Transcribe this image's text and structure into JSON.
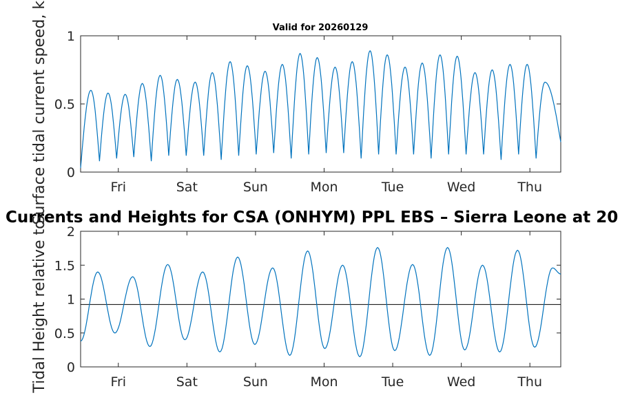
{
  "chart_data": [
    {
      "type": "line",
      "title": "Valid for 20260129",
      "ylabel": "Surface tidal current speed, knots",
      "ylim": [
        0,
        1
      ],
      "yticks": [
        0,
        0.5,
        1
      ],
      "ytick_labels": [
        "0",
        "0.5",
        "1"
      ],
      "xlabel": "",
      "x_tick_labels": [
        "Fri",
        "Sat",
        "Sun",
        "Mon",
        "Tue",
        "Wed",
        "Thu"
      ],
      "x_tick_days": [
        0.55,
        1.55,
        2.55,
        3.55,
        4.55,
        5.55,
        6.55
      ],
      "x_range_days": [
        0,
        7
      ],
      "series": [
        {
          "name": "current speed",
          "color": "#0072BD",
          "peak_days": [
            0.15,
            0.4,
            0.65,
            0.9,
            1.16,
            1.41,
            1.67,
            1.92,
            2.18,
            2.43,
            2.69,
            2.94,
            3.2,
            3.45,
            3.71,
            3.96,
            4.22,
            4.47,
            4.73,
            4.98,
            5.24,
            5.49,
            5.75,
            6.0,
            6.26,
            6.51,
            6.77
          ],
          "peak_values": [
            0.6,
            0.58,
            0.57,
            0.65,
            0.71,
            0.68,
            0.66,
            0.73,
            0.81,
            0.78,
            0.74,
            0.79,
            0.87,
            0.84,
            0.77,
            0.81,
            0.89,
            0.86,
            0.77,
            0.8,
            0.86,
            0.85,
            0.73,
            0.75,
            0.79,
            0.79,
            0.66
          ],
          "trough_values": [
            0.03,
            0.08,
            0.1,
            0.11,
            0.08,
            0.12,
            0.12,
            0.12,
            0.09,
            0.12,
            0.13,
            0.14,
            0.1,
            0.13,
            0.14,
            0.14,
            0.1,
            0.13,
            0.13,
            0.13,
            0.1,
            0.13,
            0.13,
            0.13,
            0.09,
            0.13,
            0.1,
            0.1,
            0.22
          ]
        }
      ]
    },
    {
      "type": "line",
      "title": "Currents and Heights for CSA (ONHYM) PPL EBS  – Sierra Leone at 20",
      "ylabel": "Tidal Height relative to",
      "ylim": [
        0,
        2
      ],
      "yticks": [
        0,
        0.5,
        1,
        1.5,
        2
      ],
      "ytick_labels": [
        "0",
        "0.5",
        "1",
        "1.5",
        "2"
      ],
      "xlabel": "",
      "x_tick_labels": [
        "Fri",
        "Sat",
        "Sun",
        "Mon",
        "Tue",
        "Wed",
        "Thu"
      ],
      "x_tick_days": [
        0.55,
        1.55,
        2.55,
        3.55,
        4.55,
        5.55,
        6.55
      ],
      "x_range_days": [
        0,
        7
      ],
      "reference_line": 0.92,
      "series": [
        {
          "name": "tidal height",
          "color": "#0072BD",
          "extrema_days": [
            0.0,
            0.25,
            0.5,
            0.76,
            1.01,
            1.27,
            1.52,
            1.78,
            2.03,
            2.29,
            2.54,
            2.8,
            3.05,
            3.31,
            3.56,
            3.82,
            4.07,
            4.33,
            4.58,
            4.84,
            5.09,
            5.35,
            5.6,
            5.86,
            6.11,
            6.37,
            6.62,
            6.88,
            7.0
          ],
          "extrema_values": [
            0.38,
            1.4,
            0.5,
            1.33,
            0.3,
            1.51,
            0.4,
            1.4,
            0.22,
            1.62,
            0.33,
            1.46,
            0.17,
            1.71,
            0.27,
            1.5,
            0.15,
            1.76,
            0.24,
            1.51,
            0.17,
            1.76,
            0.25,
            1.5,
            0.22,
            1.72,
            0.29,
            1.46,
            1.37
          ]
        }
      ]
    }
  ]
}
